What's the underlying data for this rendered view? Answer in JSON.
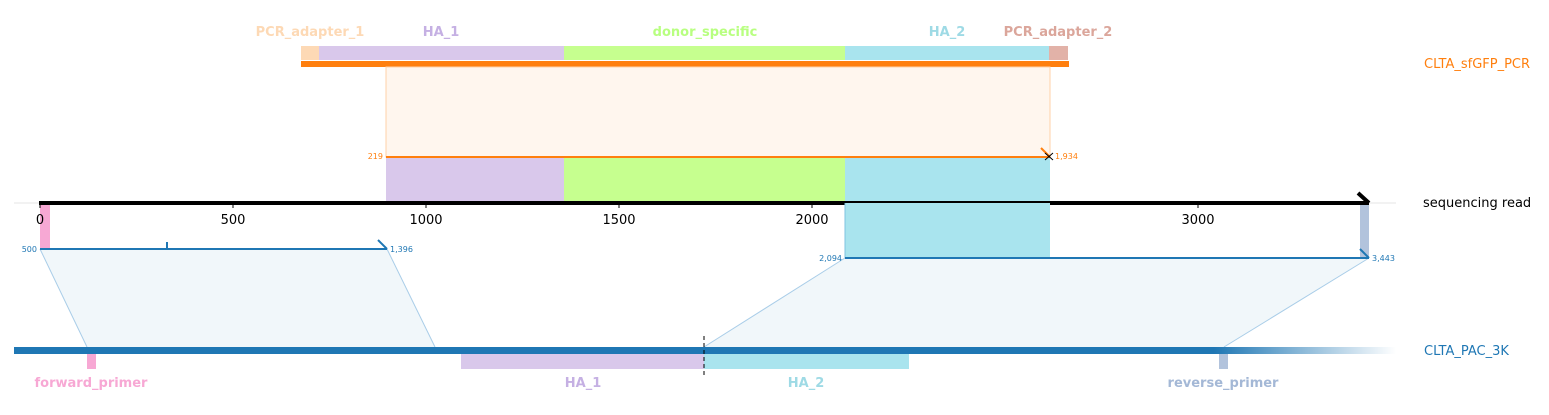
{
  "reads": {
    "top": {
      "name": "CLTA_sfGFP_PCR",
      "color": "#ff7f0e"
    },
    "middle": {
      "name": "sequencing read",
      "color": "#000000"
    },
    "bottom": {
      "name": "CLTA_PAC_3K",
      "color": "#1f77b4"
    }
  },
  "axis": {
    "ticks": [
      "0",
      "500",
      "1000",
      "1500",
      "2000",
      "2500",
      "3000"
    ],
    "tick_values": [
      0,
      500,
      1000,
      1500,
      2000,
      2500,
      3000
    ],
    "max": 3443
  },
  "top_features": [
    {
      "name": "PCR_adapter_1",
      "color": "#fdd9b5"
    },
    {
      "name": "HA_1",
      "color": "#c5b0e3"
    },
    {
      "name": "donor_specific",
      "color": "#b8ff80"
    },
    {
      "name": "HA_2",
      "color": "#9edae5"
    },
    {
      "name": "PCR_adapter_2",
      "color": "#dba69b"
    }
  ],
  "bottom_features": [
    {
      "name": "forward_primer",
      "color": "#f7a8d4"
    },
    {
      "name": "HA_1",
      "color": "#c5b0e3"
    },
    {
      "name": "HA_2",
      "color": "#9edae5"
    },
    {
      "name": "reverse_primer",
      "color": "#a4b8d6"
    }
  ],
  "alignments": {
    "top": {
      "start_label": "219",
      "end_label": "1,934",
      "read_start": 900,
      "read_end": 2606
    },
    "left": {
      "start_label": "500",
      "end_label": "1,396",
      "read_start": 0,
      "read_end": 896
    },
    "right": {
      "start_label": "2,094",
      "end_label": "3,443",
      "read_start": 2085,
      "read_end": 3443
    }
  }
}
